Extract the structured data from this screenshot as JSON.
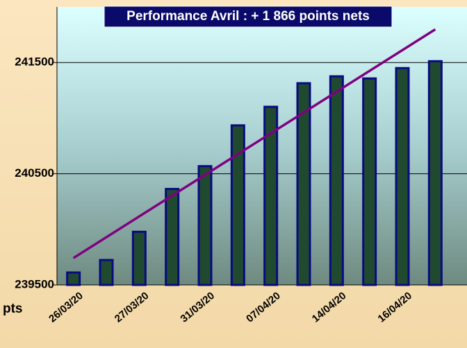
{
  "chart_data": {
    "type": "bar",
    "title": "Performance  Avril : + 1 866 points nets",
    "y_label": "pts",
    "categories": [
      "26/03/20",
      null,
      "27/03/20",
      null,
      "31/03/20",
      null,
      "07/04/20",
      null,
      "14/04/20",
      null,
      "16/04/20",
      null
    ],
    "values": [
      239612,
      239724,
      239978,
      240363,
      240568,
      240935,
      241102,
      241314,
      241376,
      241357,
      241450,
      241512
    ],
    "color": "#1f4a30",
    "ylim": [
      239500,
      242000
    ],
    "yticks": [
      239500,
      240500,
      241500
    ],
    "grid": true,
    "trendline": {
      "color": "#800080",
      "values": [
        239742,
        241798
      ]
    }
  }
}
